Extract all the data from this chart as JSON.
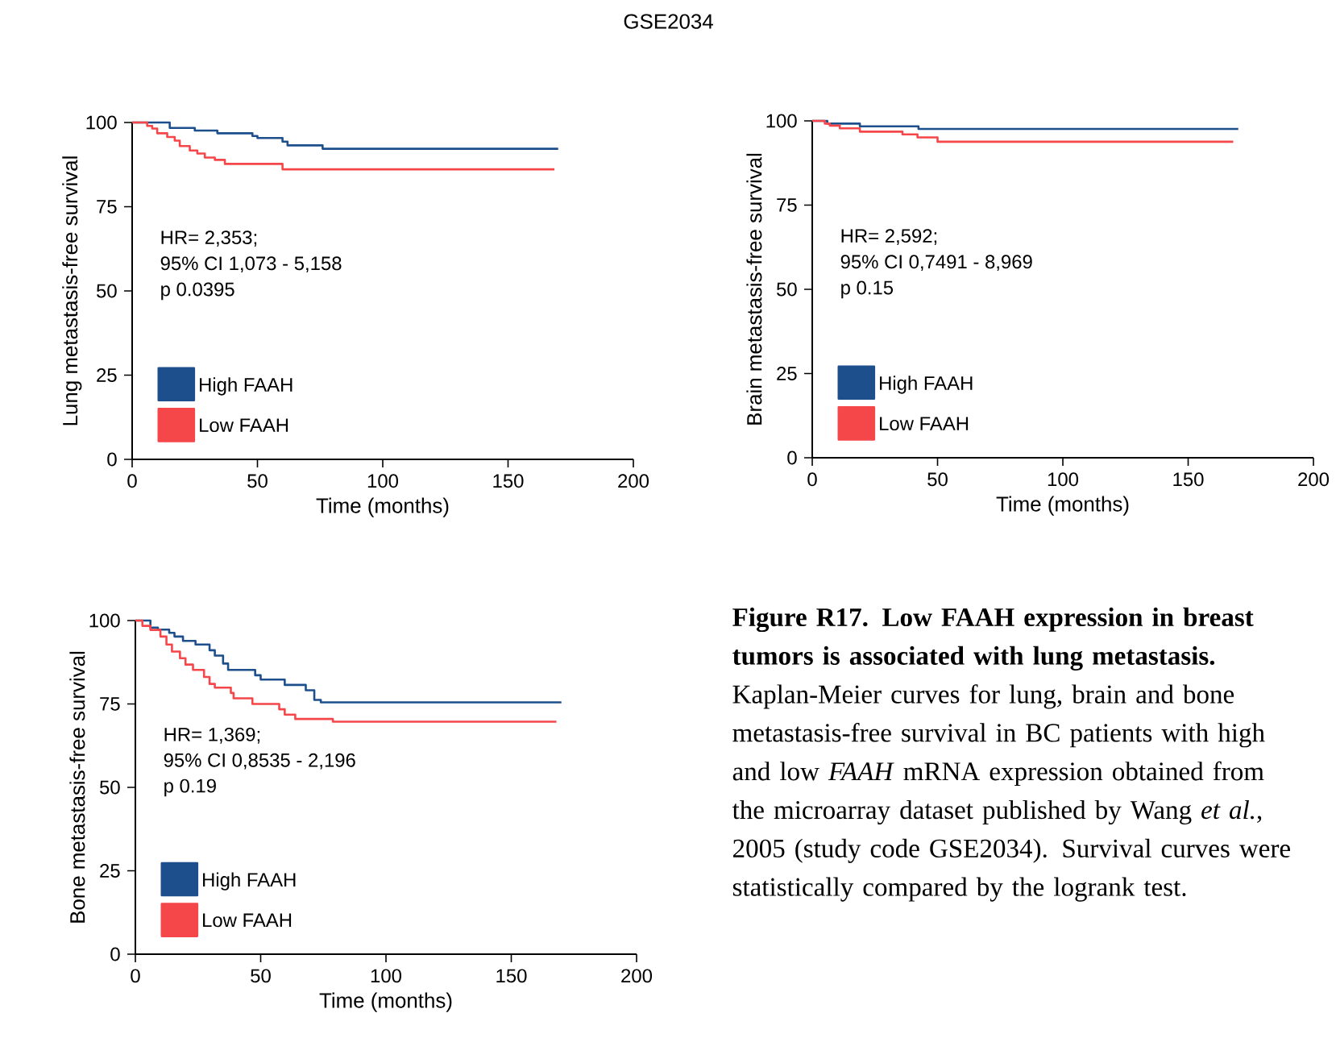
{
  "chart_data": [
    {
      "type": "step",
      "title": "GSE2034",
      "xlabel": "Time (months)",
      "ylabel": "Lung metastasis-free survival",
      "xlim": [
        0,
        200
      ],
      "ylim": [
        0,
        100
      ],
      "xticks": [
        0,
        50,
        100,
        150,
        200
      ],
      "yticks": [
        0,
        25,
        50,
        75,
        100
      ],
      "legend": "bottom left",
      "marker": "none",
      "line_style": "solid",
      "annotations": [
        "HR= 2,353;",
        "95% CI 1,073 - 5,158",
        "p 0.0395"
      ],
      "series": [
        {
          "name": "High FAAH",
          "color": "#1c4f8c",
          "x": [
            0,
            15,
            25,
            34,
            48,
            50,
            60,
            62,
            76,
            170
          ],
          "values": [
            100,
            98.4,
            97.6,
            96.8,
            96,
            95.4,
            94.3,
            93.2,
            92.2,
            92.2
          ]
        },
        {
          "name": "Low FAAH",
          "color": "#f5474a",
          "x": [
            0,
            6,
            8,
            10,
            14,
            17,
            19,
            23,
            26,
            29,
            33,
            37,
            60,
            168.5
          ],
          "values": [
            100,
            99,
            98.2,
            96.8,
            95.7,
            94.6,
            93,
            91.7,
            90.8,
            89.6,
            88.9,
            87.7,
            86.1,
            86.1
          ]
        }
      ]
    },
    {
      "type": "step",
      "xlabel": "Time (months)",
      "ylabel": "Brain metastasis-free survival",
      "xlim": [
        0,
        200
      ],
      "ylim": [
        0,
        100
      ],
      "xticks": [
        0,
        50,
        100,
        150,
        200
      ],
      "yticks": [
        0,
        25,
        50,
        75,
        100
      ],
      "legend": "bottom left",
      "marker": "none",
      "line_style": "solid",
      "annotations": [
        "HR= 2,592;",
        "95% CI 0,7491 - 8,969",
        "p 0.15"
      ],
      "series": [
        {
          "name": "High FAAH",
          "color": "#1c4f8c",
          "x": [
            0,
            6,
            19,
            42.4,
            170
          ],
          "values": [
            100,
            99.2,
            98.4,
            97.6,
            97.6
          ]
        },
        {
          "name": "Low FAAH",
          "color": "#f5474a",
          "x": [
            0,
            5,
            7,
            11,
            19,
            36,
            42,
            50,
            168
          ],
          "values": [
            100,
            99.2,
            98.6,
            97.8,
            96.8,
            96,
            95.1,
            93.8,
            93.8
          ]
        }
      ]
    },
    {
      "type": "step",
      "xlabel": "Time (months)",
      "ylabel": "Bone metastasis-free survival",
      "xlim": [
        0,
        200
      ],
      "ylim": [
        0,
        100
      ],
      "xticks": [
        0,
        50,
        100,
        150,
        200
      ],
      "yticks": [
        0,
        25,
        50,
        75,
        100
      ],
      "legend": "bottom left",
      "marker": "none",
      "line_style": "solid",
      "annotations": [
        "HR= 1,369;",
        "95% CI 0,8535 - 2,196",
        "p 0.19",
        "**Figure R17. Low FAAH expression in breast tumors is associated with lung metastasis.** Kaplan-Meier curves for lung, brain and bone metastasis-free survival in BC patients with high and low *FAAH* mRNA expression obtained from the microarray dataset published by Wang *et al.*, 2005 (study code GSE2034). Survival curves were statistically compared by the logrank test."
      ],
      "series": [
        {
          "name": "High FAAH",
          "color": "#1c4f8c",
          "x": [
            0,
            6,
            9,
            13.5,
            15.6,
            19,
            24,
            29.6,
            31.7,
            35,
            37,
            47.8,
            50,
            59.6,
            68,
            71.4,
            74,
            170
          ],
          "values": [
            100,
            97.9,
            97.3,
            96.3,
            95.2,
            93.9,
            92.8,
            91.1,
            89.5,
            87.1,
            85.2,
            83.6,
            82.3,
            80.7,
            79.1,
            76.2,
            75.5,
            75.5
          ]
        },
        {
          "name": "Low FAAH",
          "color": "#f5474a",
          "x": [
            0,
            2.8,
            6,
            10,
            12.4,
            14.6,
            17.8,
            20,
            23,
            27.4,
            29.6,
            31.7,
            38.1,
            39.2,
            46.7,
            57.4,
            59.6,
            63.8,
            78.8,
            168
          ],
          "values": [
            100,
            98.4,
            97.2,
            95.2,
            92.8,
            90.7,
            88.7,
            86.8,
            85.2,
            83.1,
            81,
            79.9,
            78.3,
            76.7,
            75,
            73.4,
            71.8,
            70.5,
            69.7,
            69.7
          ]
        }
      ]
    }
  ]
}
